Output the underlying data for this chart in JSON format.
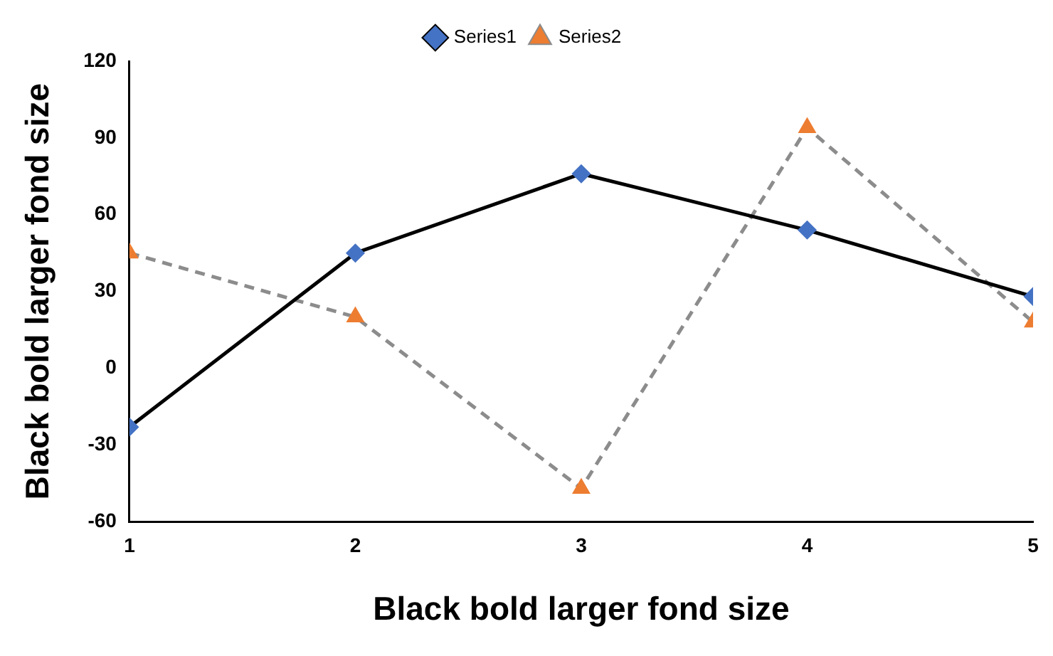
{
  "chart_data": {
    "type": "line",
    "xlabel": "Black bold larger fond size",
    "ylabel": "Black bold larger fond size",
    "x": [
      1,
      2,
      3,
      4,
      5
    ],
    "xlim": [
      1,
      5
    ],
    "xticks": [
      1,
      2,
      3,
      4,
      5
    ],
    "ylim": [
      -60,
      120
    ],
    "yticks": [
      -60,
      -30,
      0,
      30,
      60,
      90,
      120
    ],
    "grid": false,
    "legend": "top",
    "series": [
      {
        "name": "Series1",
        "color": "#000000",
        "colors": [
          "#4472c4",
          "#4472c4",
          "#4472c4",
          "#4472c4",
          "#4472c4"
        ],
        "marker": "diamond",
        "line_style": "solid",
        "values": [
          -23,
          45,
          76,
          54,
          28
        ]
      },
      {
        "name": "Series2",
        "color": "#8c8c8c",
        "colors": [
          "#ed7d31",
          "#ed7d31",
          "#ed7d31",
          "#ed7d31",
          "#ed7d31"
        ],
        "marker": "triangle",
        "line_style": "dashed",
        "values": [
          45,
          20,
          -47,
          94,
          18
        ]
      }
    ]
  }
}
